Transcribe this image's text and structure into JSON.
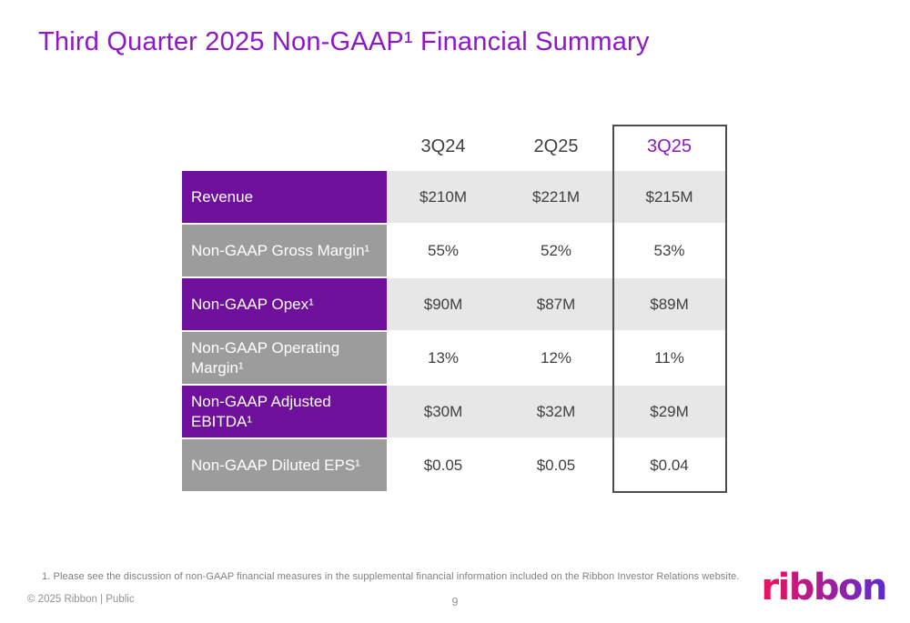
{
  "slide": {
    "title": "Third Quarter 2025 Non-GAAP¹ Financial Summary"
  },
  "table": {
    "columns": [
      "3Q24",
      "2Q25",
      "3Q25"
    ],
    "highlighted_column": "3Q25",
    "rows": [
      {
        "label": "Revenue",
        "values": [
          "$210M",
          "$221M",
          "$215M"
        ]
      },
      {
        "label": "Non-GAAP Gross Margin¹",
        "values": [
          "55%",
          "52%",
          "53%"
        ]
      },
      {
        "label": "Non-GAAP Opex¹",
        "values": [
          "$90M",
          "$87M",
          "$89M"
        ]
      },
      {
        "label": "Non-GAAP Operating Margin¹",
        "values": [
          "13%",
          "12%",
          "11%"
        ]
      },
      {
        "label": "Non-GAAP Adjusted EBITDA¹",
        "values": [
          "$30M",
          "$32M",
          "$29M"
        ]
      },
      {
        "label": "Non-GAAP Diluted EPS¹",
        "values": [
          "$0.05",
          "$0.05",
          "$0.04"
        ]
      }
    ]
  },
  "footnote": {
    "text": "1.  Please see the discussion of non-GAAP financial measures in the supplemental financial information included on the Ribbon Investor Relations website."
  },
  "footer": {
    "copyright": "© 2025 Ribbon | Public",
    "page_number": "9",
    "logo_text": "ribbon"
  },
  "colors": {
    "title_purple": "#8E17C8",
    "row_purple": "#6E109B",
    "row_gray": "#9C9C9C",
    "stripe_gray": "#E7E7E7",
    "header_text": "#404040",
    "value_text": "#3F3F3F",
    "highlight_border": "#4D4D4D",
    "footnote_gray": "#7F7F7F",
    "footer_gray": "#919191",
    "logo_pink": "#EF125E",
    "logo_purple": "#5B2BD0"
  }
}
